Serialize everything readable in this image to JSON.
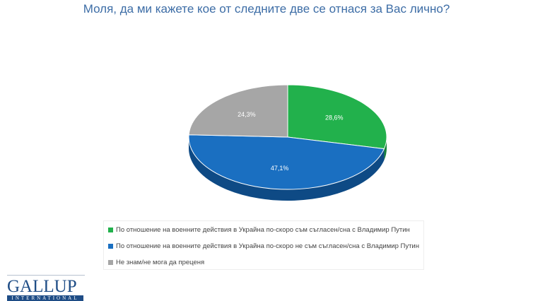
{
  "chart_data": {
    "type": "pie",
    "title": "Моля, да ми кажете кое от следните две се отнася за Вас лично?",
    "slices": [
      {
        "name": "По отношение на военните действия в Украйна по-скоро съм съгласен/сна с Владимир Путин",
        "value": 28.6,
        "label": "28,6%",
        "color": "#22b14c",
        "side": "#16803a"
      },
      {
        "name": "По отношение на военните действия в Украйна по-скоро не съм съгласен/сна с Владимир Путин",
        "value": 47.1,
        "label": "47,1%",
        "color": "#1a6fc1",
        "side": "#0e4a85"
      },
      {
        "name": "Не знам/не мога да преценя",
        "value": 24.3,
        "label": "24,3%",
        "color": "#a6a6a6",
        "side": "#777777"
      }
    ],
    "legend_position": "bottom"
  },
  "logo": {
    "main": "GALLUP",
    "sub": "INTERNATIONAL"
  }
}
